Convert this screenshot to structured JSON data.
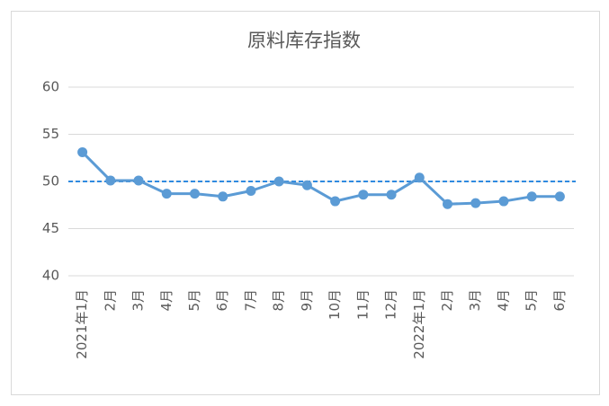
{
  "chart_data": {
    "type": "line",
    "title": "原料库存指数",
    "categories": [
      "2021年1月",
      "2月",
      "3月",
      "4月",
      "5月",
      "6月",
      "7月",
      "8月",
      "9月",
      "10月",
      "11月",
      "12月",
      "2022年1月",
      "2月",
      "3月",
      "4月",
      "5月",
      "6月"
    ],
    "values": [
      53.1,
      50.1,
      50.1,
      48.7,
      48.7,
      48.4,
      49.0,
      50.0,
      49.6,
      47.9,
      48.6,
      48.6,
      50.4,
      47.6,
      47.7,
      47.9,
      48.4,
      48.4
    ],
    "color": "#5b9bd5",
    "reference_line": 50,
    "reference_color": "#2f8ae0",
    "ylim": [
      40,
      60
    ],
    "yticks": [
      40,
      45,
      50,
      55,
      60
    ],
    "grid": true
  }
}
